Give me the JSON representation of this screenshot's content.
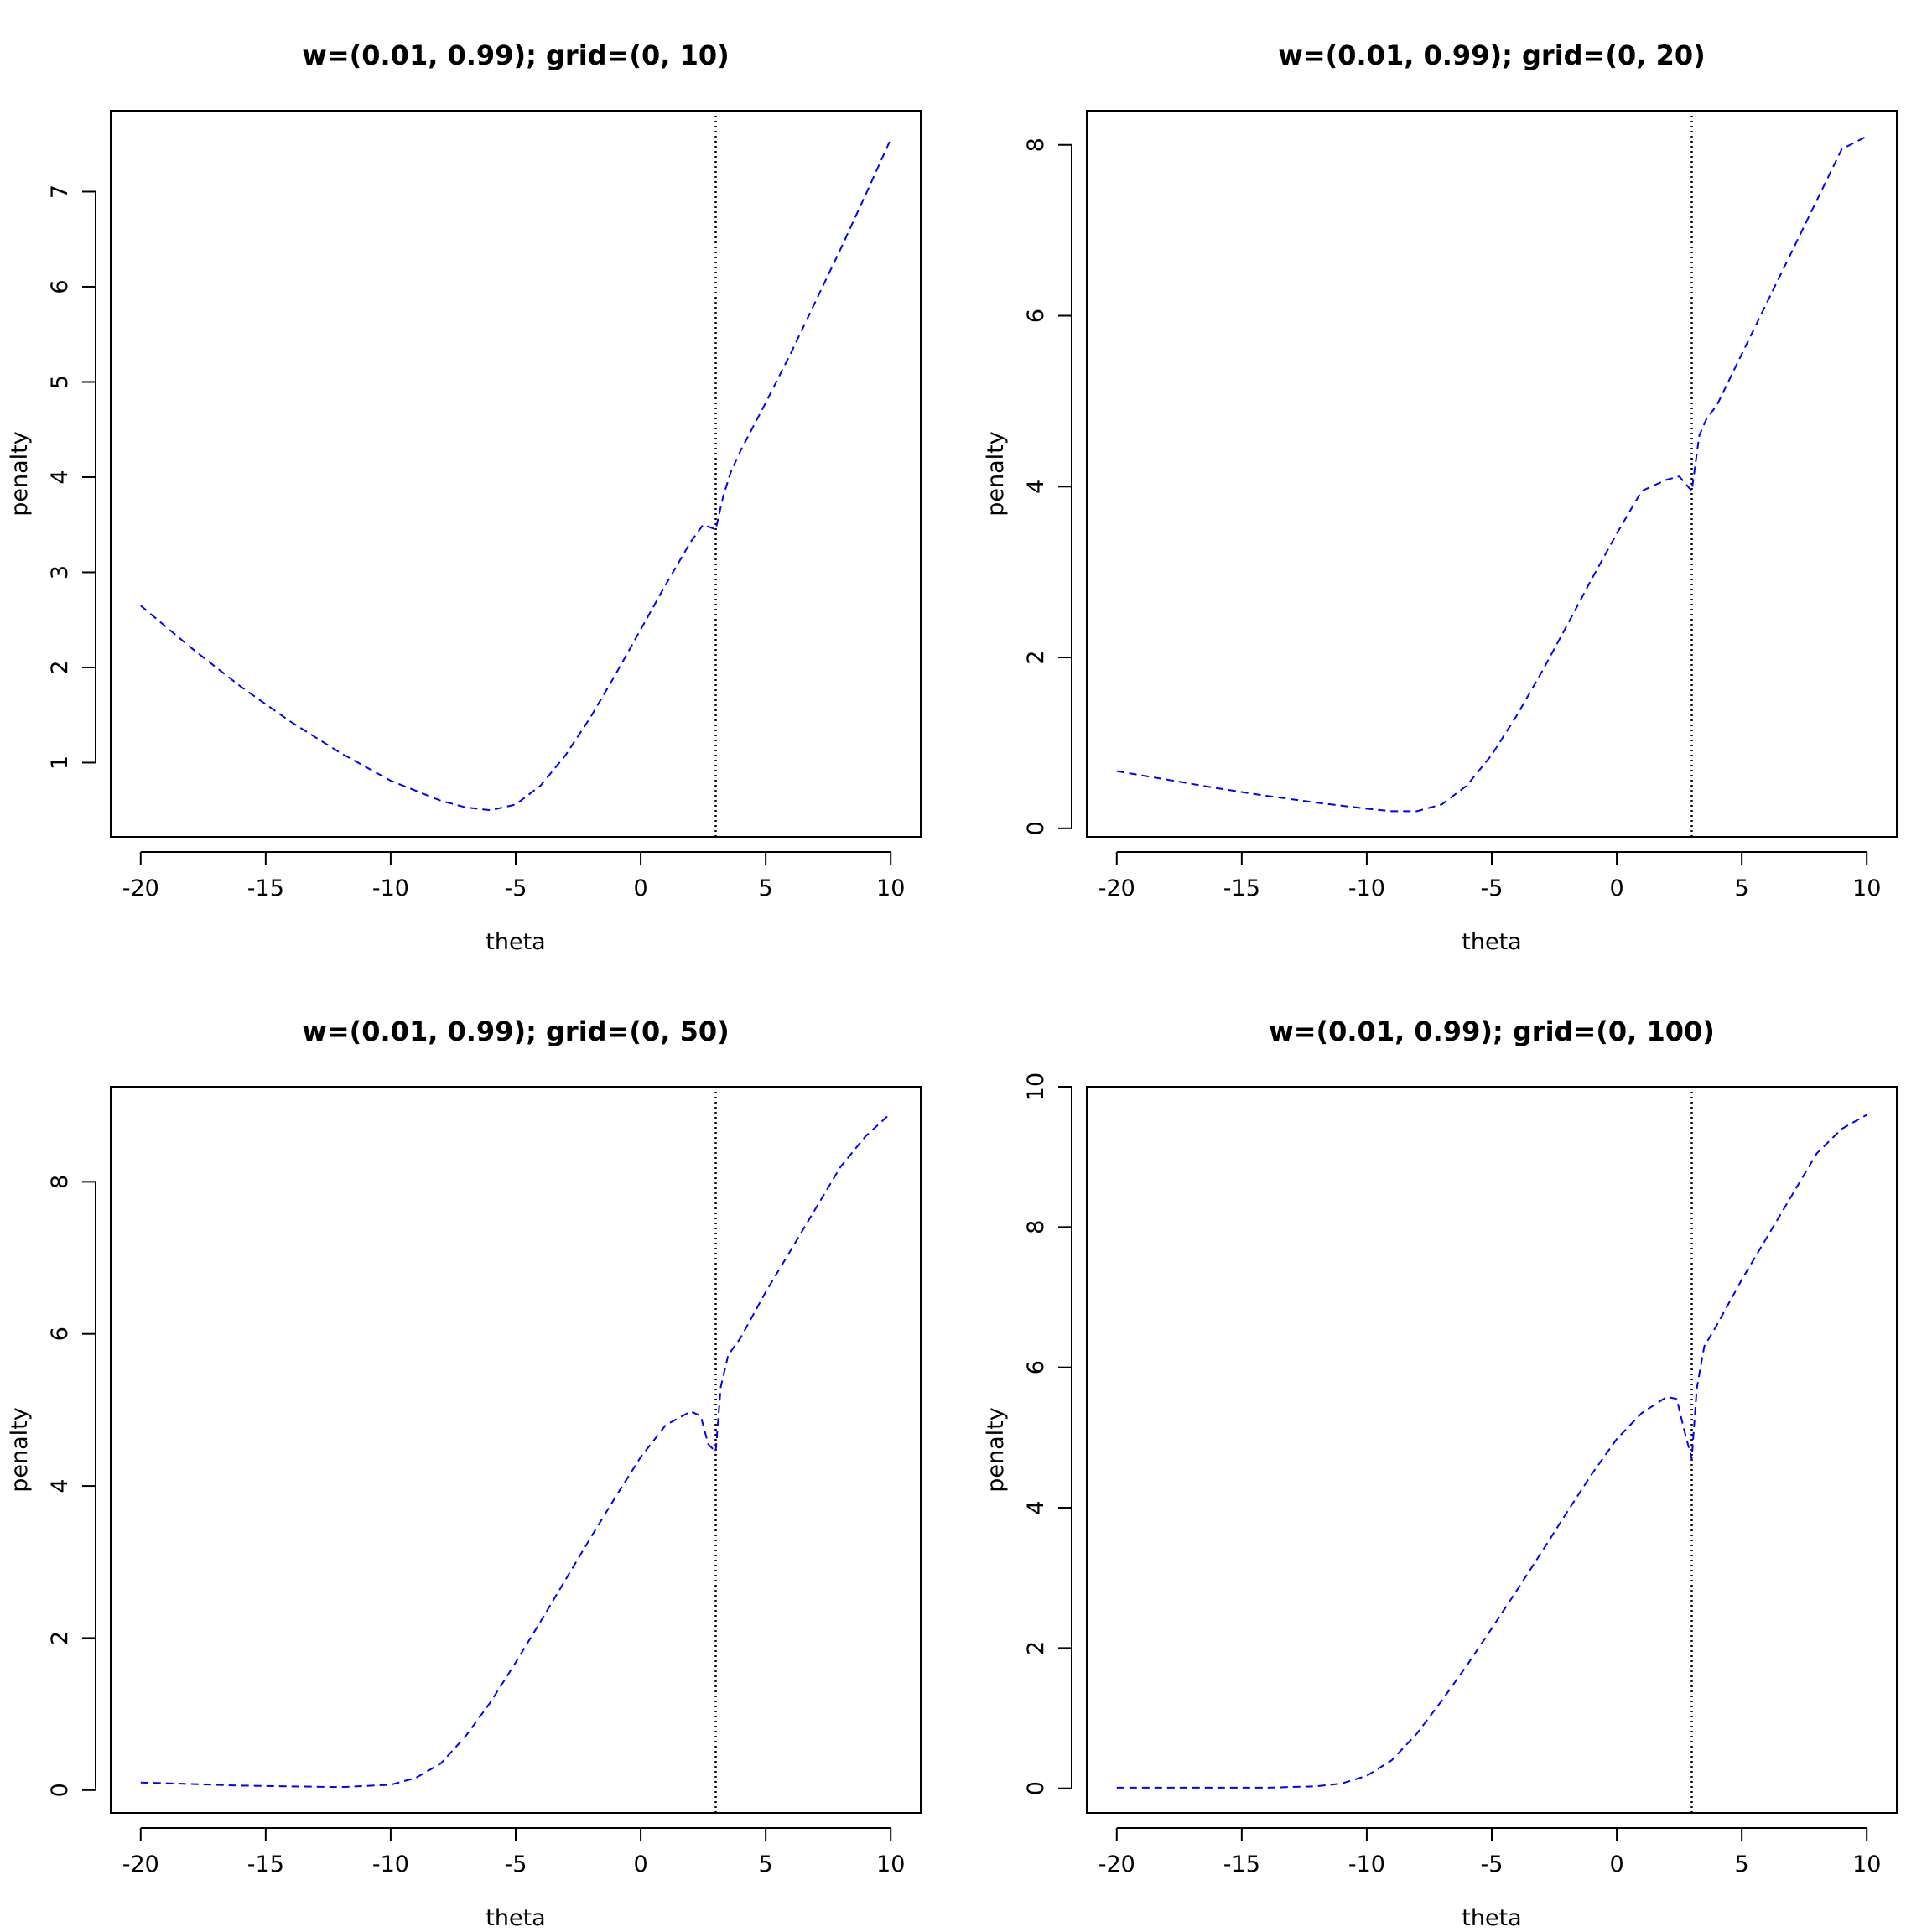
{
  "figure": {
    "background": "#ffffff",
    "line_color": "#0000ff",
    "reference_line_color": "#000000"
  },
  "chart_data": [
    {
      "type": "line",
      "title": "w=(0.01, 0.99); grid=(0, 10)",
      "xlabel": "theta",
      "ylabel": "penalty",
      "xlim": [
        -21.2,
        11.2
      ],
      "ylim": [
        0.22,
        7.85
      ],
      "xticks": [
        -20,
        -15,
        -10,
        -5,
        0,
        5,
        10
      ],
      "yticks": [
        1,
        2,
        3,
        4,
        5,
        6,
        7
      ],
      "vline": 3,
      "grid": false,
      "line_style": "dashed",
      "series": [
        {
          "x": [
            -20,
            -18,
            -16,
            -14,
            -12,
            -10,
            -8,
            -7,
            -6,
            -5,
            -4,
            -3,
            -2,
            -1,
            0,
            1,
            2,
            2.5,
            3,
            3.3,
            3.6,
            4,
            5,
            6,
            7,
            8,
            9,
            10
          ],
          "y": [
            2.65,
            2.21,
            1.8,
            1.43,
            1.1,
            0.81,
            0.6,
            0.53,
            0.5,
            0.56,
            0.76,
            1.08,
            1.48,
            1.93,
            2.4,
            2.87,
            3.32,
            3.5,
            3.45,
            3.8,
            4.05,
            4.28,
            4.78,
            5.3,
            5.85,
            6.4,
            6.97,
            7.55
          ]
        }
      ]
    },
    {
      "type": "line",
      "title": "w=(0.01, 0.99); grid=(0, 20)",
      "xlabel": "theta",
      "ylabel": "penalty",
      "xlim": [
        -21.2,
        11.2
      ],
      "ylim": [
        -0.1,
        8.4
      ],
      "xticks": [
        -20,
        -15,
        -10,
        -5,
        0,
        5,
        10
      ],
      "yticks": [
        0,
        2,
        4,
        6,
        8
      ],
      "vline": 3,
      "grid": false,
      "line_style": "dashed",
      "series": [
        {
          "x": [
            -20,
            -18,
            -16,
            -14,
            -12,
            -10,
            -9,
            -8,
            -7,
            -6,
            -5,
            -4,
            -3,
            -2,
            -1,
            0,
            1,
            2,
            2.5,
            3,
            3.3,
            3.6,
            4,
            5,
            6,
            7,
            8,
            9,
            10
          ],
          "y": [
            0.67,
            0.57,
            0.47,
            0.38,
            0.3,
            0.23,
            0.2,
            0.2,
            0.28,
            0.5,
            0.86,
            1.32,
            1.83,
            2.37,
            2.92,
            3.45,
            3.95,
            4.08,
            4.12,
            3.95,
            4.6,
            4.8,
            4.95,
            5.55,
            6.15,
            6.75,
            7.35,
            7.95,
            8.1
          ]
        }
      ]
    },
    {
      "type": "line",
      "title": "w=(0.01, 0.99); grid=(0, 50)",
      "xlabel": "theta",
      "ylabel": "penalty",
      "xlim": [
        -21.2,
        11.2
      ],
      "ylim": [
        -0.3,
        9.25
      ],
      "xticks": [
        -20,
        -15,
        -10,
        -5,
        0,
        5,
        10
      ],
      "yticks": [
        0,
        2,
        4,
        6,
        8
      ],
      "vline": 3,
      "grid": false,
      "line_style": "dashed",
      "series": [
        {
          "x": [
            -20,
            -18,
            -16,
            -14,
            -12,
            -10,
            -9,
            -8,
            -7,
            -6,
            -5,
            -4,
            -3,
            -2,
            -1,
            0,
            1,
            2,
            2.4,
            2.7,
            3,
            3.2,
            3.5,
            4,
            5,
            6,
            7,
            8,
            9,
            10
          ],
          "y": [
            0.1,
            0.08,
            0.06,
            0.05,
            0.04,
            0.07,
            0.16,
            0.35,
            0.71,
            1.16,
            1.68,
            2.22,
            2.77,
            3.32,
            3.86,
            4.38,
            4.8,
            4.98,
            4.92,
            4.55,
            4.45,
            5.3,
            5.72,
            5.95,
            6.55,
            7.1,
            7.65,
            8.2,
            8.6,
            8.9
          ]
        }
      ]
    },
    {
      "type": "line",
      "title": "w=(0.01, 0.99); grid=(0, 100)",
      "xlabel": "theta",
      "ylabel": "penalty",
      "xlim": [
        -21.2,
        11.2
      ],
      "ylim": [
        -0.35,
        10.0
      ],
      "xticks": [
        -20,
        -15,
        -10,
        -5,
        0,
        5,
        10
      ],
      "yticks": [
        0,
        2,
        4,
        6,
        8,
        10
      ],
      "vline": 3,
      "grid": false,
      "line_style": "dashed",
      "series": [
        {
          "x": [
            -20,
            -18,
            -16,
            -14,
            -12,
            -11,
            -10,
            -9,
            -8,
            -7,
            -6,
            -5,
            -4,
            -3,
            -2,
            -1,
            0,
            1,
            2,
            2.4,
            2.7,
            3,
            3.2,
            3.5,
            4,
            5,
            6,
            7,
            8,
            9,
            10
          ],
          "y": [
            0.01,
            0.01,
            0.01,
            0.01,
            0.03,
            0.07,
            0.18,
            0.4,
            0.78,
            1.25,
            1.75,
            2.28,
            2.82,
            3.37,
            3.93,
            4.48,
            4.98,
            5.35,
            5.58,
            5.55,
            5.1,
            4.7,
            5.7,
            6.3,
            6.6,
            7.25,
            7.85,
            8.45,
            9.05,
            9.4,
            9.6
          ]
        }
      ]
    }
  ]
}
